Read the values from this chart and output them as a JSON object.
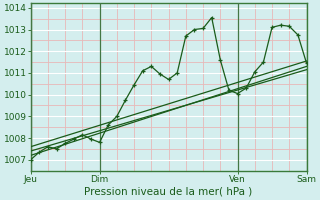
{
  "xlabel": "Pression niveau de la mer( hPa )",
  "bg_color": "#d4eeee",
  "grid_major_color": "#ffffff",
  "grid_minor_color": "#e8b8b8",
  "line_color": "#1a5c1a",
  "spine_color": "#3a7a3a",
  "ylim": [
    1006.5,
    1014.2
  ],
  "xlim": [
    0,
    96
  ],
  "yticks": [
    1007,
    1008,
    1009,
    1010,
    1011,
    1012,
    1013,
    1014
  ],
  "day_positions": [
    0,
    24,
    72,
    96
  ],
  "day_labels": [
    "Jeu",
    "Dim",
    "Ven",
    "Sam"
  ],
  "series1_x": [
    0,
    3,
    6,
    9,
    12,
    15,
    18,
    21,
    24,
    27,
    30,
    33,
    36,
    39,
    42,
    45,
    48,
    51,
    54,
    57,
    60,
    63,
    66,
    69,
    72,
    75,
    78,
    81,
    84,
    87,
    90,
    93,
    96
  ],
  "series1_y": [
    1007.0,
    1007.35,
    1007.6,
    1007.5,
    1007.75,
    1007.95,
    1008.15,
    1007.95,
    1007.8,
    1008.6,
    1009.0,
    1009.75,
    1010.45,
    1011.1,
    1011.3,
    1010.95,
    1010.7,
    1011.0,
    1012.7,
    1013.0,
    1013.05,
    1013.55,
    1011.6,
    1010.2,
    1010.05,
    1010.3,
    1011.05,
    1011.5,
    1013.1,
    1013.2,
    1013.15,
    1012.75,
    1011.45
  ],
  "series2_x": [
    0,
    96
  ],
  "series2_y": [
    1007.2,
    1011.3
  ],
  "series3_x": [
    0,
    96
  ],
  "series3_y": [
    1007.4,
    1011.15
  ],
  "series4_x": [
    0,
    96
  ],
  "series4_y": [
    1007.6,
    1011.55
  ]
}
